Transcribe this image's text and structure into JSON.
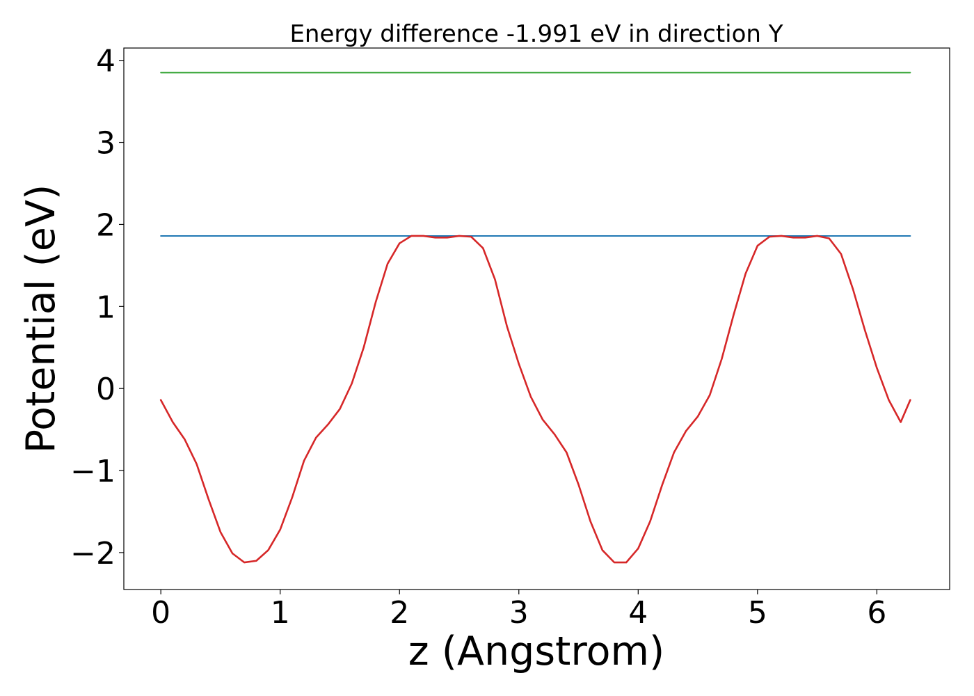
{
  "chart_data": {
    "type": "line",
    "title": "Energy difference -1.991 eV in direction Y",
    "xlabel": "z (Angstrom)",
    "ylabel": "Potential (eV)",
    "xlim": [
      -0.31,
      6.61
    ],
    "ylim": [
      -2.45,
      4.15
    ],
    "xticks": [
      0,
      1,
      2,
      3,
      4,
      5,
      6
    ],
    "yticks": [
      -2,
      -1,
      0,
      1,
      2,
      3,
      4
    ],
    "xtick_labels": [
      "0",
      "1",
      "2",
      "3",
      "4",
      "5",
      "6"
    ],
    "ytick_labels": [
      "−2",
      "−1",
      "0",
      "1",
      "2",
      "3",
      "4"
    ],
    "grid": false,
    "series": [
      {
        "color": "#d62728",
        "x": [
          0.0,
          0.1,
          0.2,
          0.3,
          0.4,
          0.5,
          0.6,
          0.7,
          0.8,
          0.9,
          1.0,
          1.1,
          1.2,
          1.3,
          1.4,
          1.5,
          1.6,
          1.7,
          1.8,
          1.9,
          2.0,
          2.1,
          2.2,
          2.3,
          2.4,
          2.5,
          2.6,
          2.7,
          2.8,
          2.9,
          3.0,
          3.1,
          3.2,
          3.3,
          3.4,
          3.5,
          3.6,
          3.7,
          3.8,
          3.9,
          4.0,
          4.1,
          4.2,
          4.3,
          4.4,
          4.5,
          4.6,
          4.7,
          4.8,
          4.9,
          5.0,
          5.1,
          5.2,
          5.3,
          5.4,
          5.5,
          5.6,
          5.7,
          5.8,
          5.9,
          6.0,
          6.1,
          6.2,
          6.28
        ],
        "values": [
          -0.14,
          -0.41,
          -0.62,
          -0.92,
          -1.35,
          -1.75,
          -2.01,
          -2.12,
          -2.1,
          -1.97,
          -1.72,
          -1.33,
          -0.88,
          -0.6,
          -0.44,
          -0.25,
          0.06,
          0.5,
          1.05,
          1.52,
          1.77,
          1.86,
          1.86,
          1.84,
          1.84,
          1.86,
          1.85,
          1.71,
          1.33,
          0.76,
          0.3,
          -0.1,
          -0.38,
          -0.56,
          -0.78,
          -1.17,
          -1.62,
          -1.97,
          -2.12,
          -2.12,
          -1.95,
          -1.62,
          -1.18,
          -0.78,
          -0.52,
          -0.34,
          -0.08,
          0.36,
          0.9,
          1.4,
          1.74,
          1.85,
          1.86,
          1.84,
          1.84,
          1.86,
          1.83,
          1.64,
          1.21,
          0.71,
          0.25,
          -0.14,
          -0.41,
          -0.14
        ]
      },
      {
        "color": "#1f77b4",
        "x": [
          0.0,
          6.28
        ],
        "values": [
          1.86,
          1.86
        ]
      },
      {
        "color": "#2ca02c",
        "x": [
          0.0,
          6.28
        ],
        "values": [
          3.85,
          3.85
        ]
      }
    ]
  }
}
